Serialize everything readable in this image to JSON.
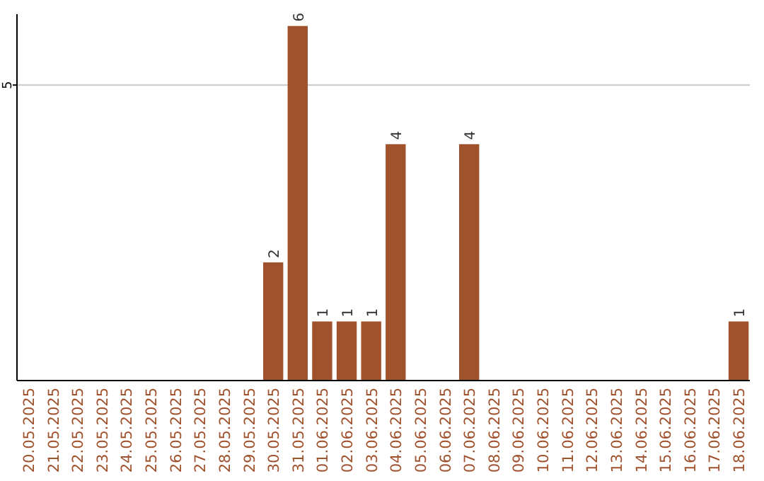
{
  "chart_data": {
    "type": "bar",
    "categories": [
      "20.05.2025",
      "21.05.2025",
      "22.05.2025",
      "23.05.2025",
      "24.05.2025",
      "25.05.2025",
      "26.05.2025",
      "27.05.2025",
      "28.05.2025",
      "29.05.2025",
      "30.05.2025",
      "31.05.2025",
      "01.06.2025",
      "02.06.2025",
      "03.06.2025",
      "04.06.2025",
      "05.06.2025",
      "06.06.2025",
      "07.06.2025",
      "08.06.2025",
      "09.06.2025",
      "10.06.2025",
      "11.06.2025",
      "12.06.2025",
      "13.06.2025",
      "14.06.2025",
      "15.06.2025",
      "16.06.2025",
      "17.06.2025",
      "18.06.2025"
    ],
    "values": [
      0,
      0,
      0,
      0,
      0,
      0,
      0,
      0,
      0,
      0,
      2,
      6,
      1,
      1,
      1,
      4,
      0,
      0,
      4,
      0,
      0,
      0,
      0,
      0,
      0,
      0,
      0,
      0,
      0,
      1
    ],
    "value_labels": [
      null,
      null,
      null,
      null,
      null,
      null,
      null,
      null,
      null,
      null,
      "2",
      "6",
      "1",
      "1",
      "1",
      "4",
      null,
      null,
      "4",
      null,
      null,
      null,
      null,
      null,
      null,
      null,
      null,
      null,
      null,
      "1"
    ],
    "color": "#a0522d",
    "ylim": [
      0,
      6.2
    ],
    "yticks": [
      5
    ],
    "grid": "y"
  }
}
